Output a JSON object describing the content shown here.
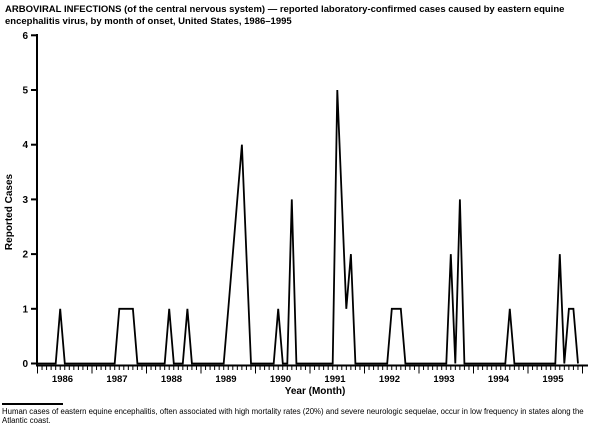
{
  "page": {
    "background": "#ffffff",
    "text_color": "#000000"
  },
  "title": "ARBOVIRAL INFECTIONS (of the central nervous system) — reported laboratory-confirmed cases caused by eastern equine encephalitis virus, by month of onset, United States, 1986–1995",
  "footnote": {
    "text": "Human cases of eastern equine encephalitis, often associated with high mortality rates (20%) and severe neurologic sequelae, occur in low frequency in states along the Atlantic coast."
  },
  "chart_data": {
    "type": "line",
    "title": "Reported laboratory-confirmed eastern equine encephalitis cases by month of onset",
    "xlabel": "Year (Month)",
    "ylabel": "Reported Cases",
    "ylim": [
      0,
      6
    ],
    "yticks": [
      0,
      1,
      2,
      3,
      4,
      5,
      6
    ],
    "x_unit": "month",
    "x_start": "1986-01",
    "x_end": "1995-12",
    "grid": false,
    "legend": "none",
    "line_color": "#000000",
    "year_labels": [
      "1986",
      "1987",
      "1988",
      "1989",
      "1990",
      "1991",
      "1992",
      "1993",
      "1994",
      "1995"
    ],
    "series": [
      {
        "name": "Reported cases",
        "values_by_year": {
          "1986": [
            0,
            0,
            0,
            0,
            0,
            1,
            0,
            0,
            0,
            0,
            0,
            0
          ],
          "1987": [
            0,
            0,
            0,
            0,
            0,
            0,
            1,
            1,
            1,
            1,
            0,
            0
          ],
          "1988": [
            0,
            0,
            0,
            0,
            0,
            1,
            0,
            0,
            0,
            1,
            0,
            0
          ],
          "1989": [
            0,
            0,
            0,
            0,
            0,
            0,
            1,
            2,
            3,
            4,
            2,
            0
          ],
          "1990": [
            0,
            0,
            0,
            0,
            0,
            1,
            0,
            0,
            3,
            0,
            0,
            0
          ],
          "1991": [
            0,
            0,
            0,
            0,
            0,
            0,
            5,
            3,
            1,
            2,
            0,
            0
          ],
          "1992": [
            0,
            0,
            0,
            0,
            0,
            0,
            1,
            1,
            1,
            0,
            0,
            0
          ],
          "1993": [
            0,
            0,
            0,
            0,
            0,
            0,
            0,
            2,
            0,
            3,
            0,
            0
          ],
          "1994": [
            0,
            0,
            0,
            0,
            0,
            0,
            0,
            0,
            1,
            0,
            0,
            0
          ],
          "1995": [
            0,
            0,
            0,
            0,
            0,
            0,
            0,
            2,
            0,
            1,
            1,
            0
          ]
        }
      }
    ]
  }
}
